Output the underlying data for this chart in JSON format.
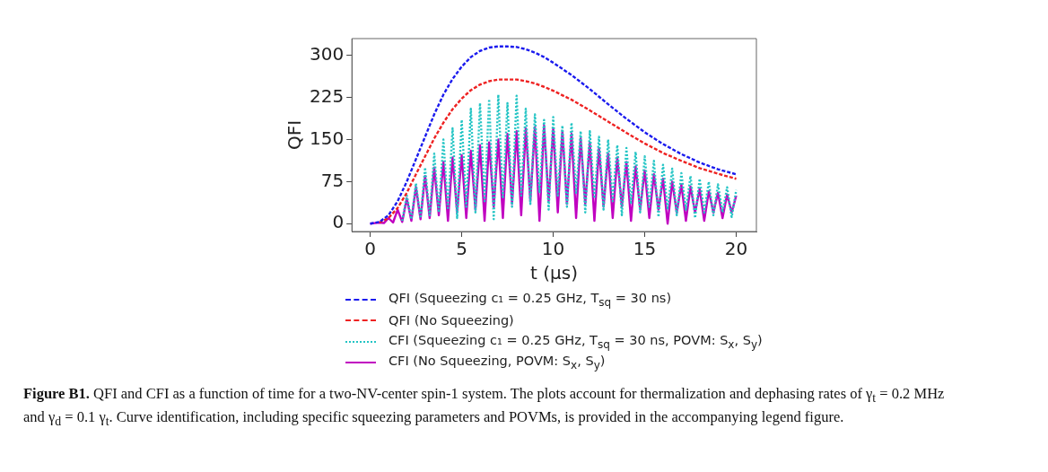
{
  "chart_data": {
    "type": "line",
    "xlabel": "t (μs)",
    "ylabel": "QFI",
    "xlim": [
      -1,
      21.1
    ],
    "ylim": [
      -14,
      330
    ],
    "xticks": [
      0,
      5,
      10,
      15,
      20
    ],
    "yticks": [
      0,
      75,
      150,
      225,
      300
    ],
    "grid": false,
    "legend": "bottom",
    "marker": "none",
    "annotations": [
      "Figure B1.",
      "QFI and CFI as a function of time for a two-NV-center spin-1 system. The plots account for thermalization and dephasing rates of γ$_{t}$ = 0.2 MHz and γ$_{d}$ = 0.1 γ$_{t}$. Curve identification, including specific squeezing parameters and POVMs, is provided in the accompanying legend figure."
    ],
    "series": [
      {
        "name": "QFI (Squeezing c₁ = 0.25 GHz, T$_{sq}$ = 30 ns)",
        "color": "#1a1aee",
        "line_style": "dashed",
        "x": [
          0,
          0.5,
          1,
          1.5,
          2,
          2.5,
          3,
          3.5,
          4,
          4.5,
          5,
          5.5,
          6,
          6.5,
          7,
          7.5,
          8,
          8.5,
          9,
          9.5,
          10,
          11,
          12,
          13,
          14,
          15,
          16,
          17,
          18,
          19,
          20
        ],
        "values": [
          0,
          3,
          15,
          40,
          75,
          115,
          155,
          195,
          230,
          258,
          280,
          297,
          308,
          314,
          316,
          316,
          315,
          311,
          305,
          297,
          287,
          265,
          240,
          213,
          187,
          163,
          142,
          124,
          109,
          97,
          88
        ]
      },
      {
        "name": "QFI (No Squeezing)",
        "color": "#ee2222",
        "line_style": "dashed",
        "x": [
          0.5,
          1,
          1.5,
          2,
          2.5,
          3,
          3.5,
          4,
          4.5,
          5,
          5.5,
          6,
          6.5,
          7,
          7.5,
          8,
          8.5,
          9,
          9.5,
          10,
          11,
          12,
          13,
          14,
          15,
          16,
          17,
          18,
          19,
          20
        ],
        "values": [
          2,
          10,
          28,
          55,
          88,
          120,
          152,
          180,
          204,
          223,
          238,
          248,
          254,
          257,
          257,
          257,
          254,
          250,
          244,
          237,
          221,
          202,
          182,
          162,
          143,
          126,
          112,
          99,
          89,
          80
        ]
      },
      {
        "name": "CFI (Squeezing c₁ = 0.25 GHz, T$_{sq}$ = 30 ns, POVM: S$_{x}$, S$_{y}$)",
        "color": "#22c4c4",
        "line_style": "dotted",
        "x": [
          1.75,
          2,
          2.25,
          2.5,
          2.75,
          3,
          3.25,
          3.5,
          3.75,
          4,
          4.25,
          4.5,
          4.75,
          5,
          5.25,
          5.5,
          5.75,
          6,
          6.25,
          6.5,
          6.75,
          7,
          7.25,
          7.5,
          7.75,
          8,
          8.25,
          8.5,
          8.75,
          9,
          9.25,
          9.5,
          9.75,
          10,
          10.25,
          10.5,
          10.75,
          11,
          11.25,
          11.5,
          11.75,
          12,
          12.25,
          12.5,
          12.75,
          13,
          13.25,
          13.5,
          13.75,
          14,
          14.25,
          14.5,
          14.75,
          15,
          15.25,
          15.5,
          15.75,
          16,
          16.25,
          16.5,
          16.75,
          17,
          17.25,
          17.5,
          17.75,
          18,
          18.25,
          18.5,
          18.75,
          19,
          19.25,
          19.5,
          19.75,
          20
        ],
        "values": [
          5,
          50,
          8,
          72,
          10,
          100,
          15,
          125,
          20,
          150,
          25,
          170,
          10,
          185,
          30,
          205,
          20,
          215,
          40,
          222,
          8,
          230,
          45,
          215,
          30,
          228,
          50,
          205,
          35,
          195,
          55,
          185,
          25,
          190,
          50,
          175,
          30,
          180,
          55,
          165,
          20,
          165,
          45,
          155,
          25,
          150,
          40,
          140,
          15,
          135,
          35,
          128,
          20,
          120,
          30,
          112,
          12,
          105,
          25,
          98,
          15,
          90,
          25,
          85,
          10,
          80,
          20,
          75,
          15,
          70,
          20,
          65,
          12,
          60
        ]
      },
      {
        "name": "CFI (No Squeezing, POVM: S$_{x}$, S$_{y}$)",
        "color": "#c000c0",
        "line_style": "solid",
        "x": [
          0,
          0.25,
          0.5,
          0.75,
          1,
          1.25,
          1.5,
          1.75,
          2,
          2.25,
          2.5,
          2.75,
          3,
          3.25,
          3.5,
          3.75,
          4,
          4.25,
          4.5,
          4.75,
          5,
          5.25,
          5.5,
          5.75,
          6,
          6.25,
          6.5,
          6.75,
          7,
          7.25,
          7.5,
          7.75,
          8,
          8.25,
          8.5,
          8.75,
          9,
          9.25,
          9.5,
          9.75,
          10,
          10.25,
          10.5,
          10.75,
          11,
          11.25,
          11.5,
          11.75,
          12,
          12.25,
          12.5,
          12.75,
          13,
          13.25,
          13.5,
          13.75,
          14,
          14.25,
          14.5,
          14.75,
          15,
          15.25,
          15.5,
          15.75,
          16,
          16.25,
          16.5,
          16.75,
          17,
          17.25,
          17.5,
          17.75,
          18,
          18.25,
          18.5,
          18.75,
          19,
          19.25,
          19.5,
          19.75,
          20
        ],
        "values": [
          0,
          1,
          2,
          1,
          10,
          2,
          25,
          3,
          45,
          5,
          65,
          8,
          85,
          10,
          100,
          15,
          110,
          5,
          118,
          20,
          122,
          10,
          130,
          25,
          140,
          5,
          145,
          30,
          150,
          10,
          160,
          35,
          165,
          15,
          170,
          40,
          172,
          5,
          175,
          40,
          170,
          20,
          165,
          35,
          160,
          10,
          152,
          35,
          145,
          5,
          135,
          30,
          125,
          10,
          118,
          30,
          110,
          5,
          102,
          25,
          95,
          10,
          88,
          25,
          80,
          0,
          75,
          20,
          70,
          5,
          66,
          20,
          62,
          5,
          58,
          20,
          55,
          10,
          52,
          20,
          50
        ]
      }
    ]
  }
}
